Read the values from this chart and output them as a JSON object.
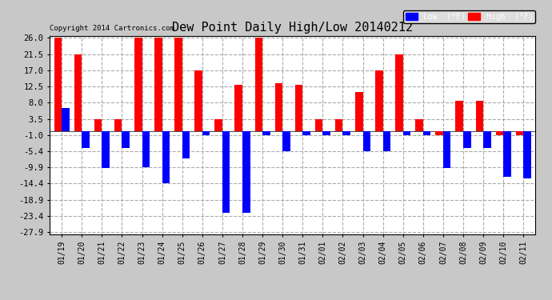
{
  "title": "Dew Point Daily High/Low 20140212",
  "copyright": "Copyright 2014 Cartronics.com",
  "dates": [
    "01/19",
    "01/20",
    "01/21",
    "01/22",
    "01/23",
    "01/24",
    "01/25",
    "01/26",
    "01/27",
    "01/28",
    "01/29",
    "01/30",
    "01/31",
    "02/01",
    "02/02",
    "02/03",
    "02/04",
    "02/05",
    "02/06",
    "02/07",
    "02/08",
    "02/09",
    "02/10",
    "02/11"
  ],
  "high": [
    26.0,
    21.5,
    3.5,
    3.5,
    26.0,
    26.0,
    26.0,
    17.0,
    3.5,
    13.0,
    26.0,
    13.5,
    13.0,
    3.5,
    3.5,
    11.0,
    17.0,
    21.5,
    3.5,
    -1.0,
    8.5,
    8.5,
    -1.0,
    -1.0
  ],
  "low": [
    6.5,
    -4.5,
    -10.0,
    -4.5,
    -9.9,
    -14.4,
    -7.5,
    -1.0,
    -22.5,
    -22.5,
    -1.0,
    -5.4,
    -1.0,
    -1.0,
    -1.0,
    -5.4,
    -5.4,
    -1.0,
    -1.0,
    -10.0,
    -4.5,
    -4.5,
    -12.5,
    -13.0
  ],
  "yticks": [
    26.0,
    21.5,
    17.0,
    12.5,
    8.0,
    3.5,
    -1.0,
    -5.4,
    -9.9,
    -14.4,
    -18.9,
    -23.4,
    -27.9
  ],
  "bg_color": "#c8c8c8",
  "plot_bg": "#ffffff",
  "high_color": "#ff0000",
  "low_color": "#0000ff",
  "grid_color": "#aaaaaa",
  "bar_width": 0.38
}
